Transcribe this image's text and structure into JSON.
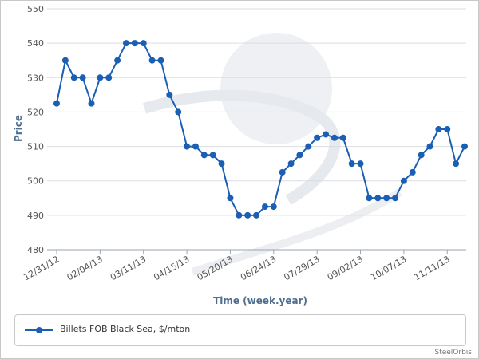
{
  "chart_data": {
    "type": "line",
    "xlabel": "Time (week.year)",
    "ylabel": "Price",
    "ylim": [
      480,
      550
    ],
    "yticks": [
      480,
      490,
      500,
      510,
      520,
      530,
      540,
      550
    ],
    "grid": "horizontal",
    "x_tick_labels": [
      {
        "index": 0,
        "label": "12/31/12"
      },
      {
        "index": 5,
        "label": "02/04/13"
      },
      {
        "index": 10,
        "label": "03/11/13"
      },
      {
        "index": 15,
        "label": "04/15/13"
      },
      {
        "index": 20,
        "label": "05/20/13"
      },
      {
        "index": 25,
        "label": "06/24/13"
      },
      {
        "index": 30,
        "label": "07/29/13"
      },
      {
        "index": 35,
        "label": "09/02/13"
      },
      {
        "index": 40,
        "label": "10/07/13"
      },
      {
        "index": 45,
        "label": "11/11/13"
      }
    ],
    "series": [
      {
        "name": "Billets FOB Black Sea, $/mton",
        "color": "#1a5fb4",
        "values": [
          522.5,
          535,
          530,
          530,
          522.5,
          530,
          530,
          535,
          540,
          540,
          540,
          535,
          535,
          525,
          520,
          510,
          510,
          507.5,
          507.5,
          505,
          495,
          490,
          490,
          490,
          492.5,
          492.5,
          502.5,
          505,
          507.5,
          510,
          512.5,
          513.5,
          512.5,
          512.5,
          505,
          505,
          495,
          495,
          495,
          495,
          500,
          502.5,
          507.5,
          510,
          515,
          515,
          505,
          510
        ]
      }
    ],
    "legend": {
      "position": "bottom",
      "label": "Billets FOB Black Sea, $/mton"
    }
  },
  "credit": "SteelOrbis"
}
